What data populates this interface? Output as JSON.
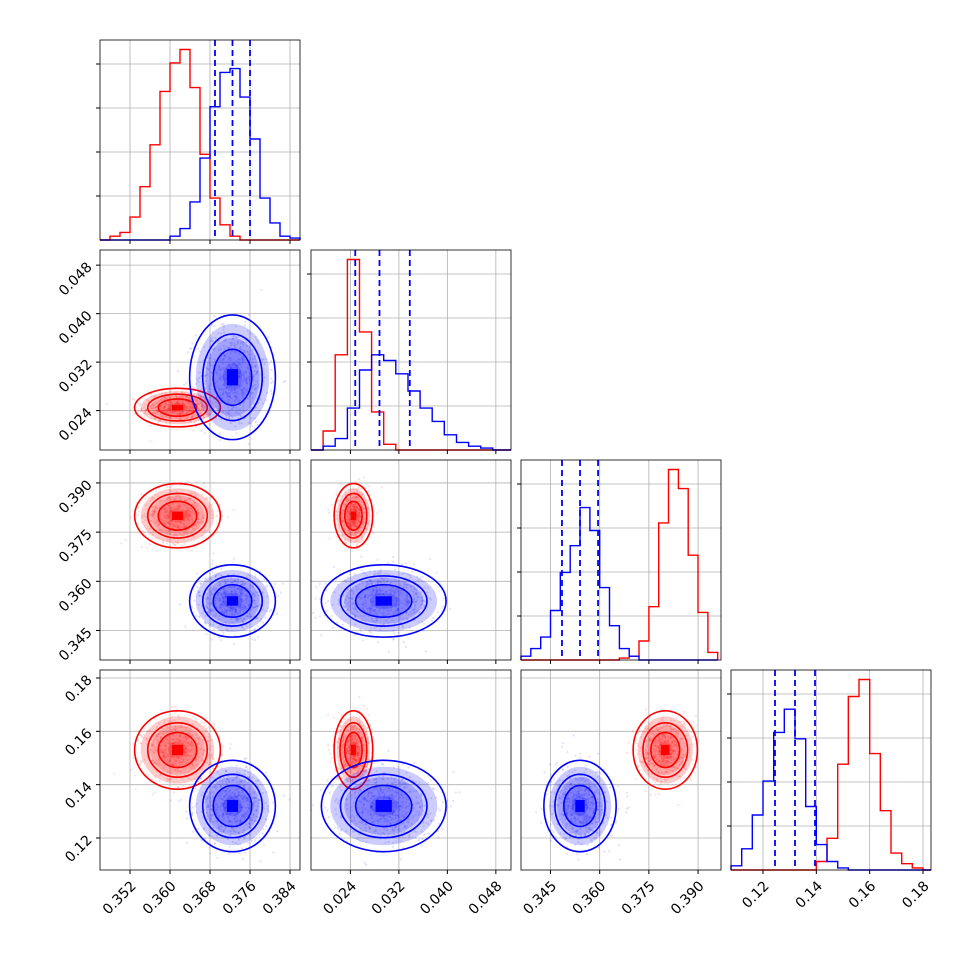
{
  "colors": {
    "series_a": "#ff0000",
    "series_b": "#0000ff",
    "grid": "#b0b0b0",
    "axis": "#000000"
  },
  "chart_data": {
    "type": "corner",
    "grid": true,
    "quantile_lines": "dashed vertical lines on series_b histograms",
    "parameters": [
      {
        "range": [
          0.346,
          0.386
        ],
        "ticks": [
          0.352,
          0.36,
          0.368,
          0.376,
          0.384
        ],
        "tick_labels": [
          "0.352",
          "0.360",
          "0.368",
          "0.376",
          "0.384"
        ]
      },
      {
        "range": [
          0.0175,
          0.0505
        ],
        "ticks": [
          0.024,
          0.032,
          0.04,
          0.048
        ],
        "tick_labels": [
          "0.024",
          "0.032",
          "0.040",
          "0.048"
        ]
      },
      {
        "range": [
          0.336,
          0.397
        ],
        "ticks": [
          0.345,
          0.36,
          0.375,
          0.39
        ],
        "tick_labels": [
          "0.345",
          "0.360",
          "0.375",
          "0.390"
        ]
      },
      {
        "range": [
          0.108,
          0.183
        ],
        "ticks": [
          0.12,
          0.14,
          0.16,
          0.18
        ],
        "tick_labels": [
          "0.12",
          "0.14",
          "0.16",
          "0.18"
        ]
      }
    ],
    "series": [
      {
        "color": "red",
        "mean": [
          0.3615,
          0.0245,
          0.38,
          0.153
        ],
        "sd": [
          0.0035,
          0.0013,
          0.004,
          0.006
        ]
      },
      {
        "color": "blue",
        "mean": [
          0.3725,
          0.0295,
          0.354,
          0.132
        ],
        "sd": [
          0.0035,
          0.0042,
          0.0045,
          0.007
        ]
      }
    ],
    "histograms": [
      {
        "param": 0,
        "edges": [
          0.346,
          0.348,
          0.35,
          0.352,
          0.354,
          0.356,
          0.358,
          0.36,
          0.362,
          0.364,
          0.366,
          0.368,
          0.37,
          0.372,
          0.374,
          0.376,
          0.378,
          0.38,
          0.382,
          0.384,
          0.386
        ],
        "red": [
          0,
          0.02,
          0.04,
          0.12,
          0.28,
          0.5,
          0.78,
          0.93,
          1.0,
          0.8,
          0.45,
          0.22,
          0.08,
          0.02,
          0,
          0,
          0,
          0,
          0,
          0
        ],
        "blue": [
          0,
          0,
          0,
          0,
          0,
          0,
          0,
          0.02,
          0.06,
          0.2,
          0.43,
          0.7,
          0.88,
          0.9,
          0.75,
          0.53,
          0.22,
          0.09,
          0.02,
          0.01
        ],
        "quantiles": [
          0.369,
          0.3725,
          0.376
        ]
      },
      {
        "param": 1,
        "edges": [
          0.0175,
          0.0195,
          0.0215,
          0.0235,
          0.0255,
          0.0275,
          0.0295,
          0.0315,
          0.0335,
          0.0355,
          0.0375,
          0.0395,
          0.0415,
          0.0435,
          0.0455,
          0.0475,
          0.0495,
          0.0505
        ],
        "red": [
          0,
          0.1,
          0.5,
          1.0,
          0.62,
          0.2,
          0.03,
          0,
          0,
          0,
          0,
          0,
          0,
          0,
          0,
          0,
          0
        ],
        "blue": [
          0,
          0.02,
          0.06,
          0.22,
          0.42,
          0.5,
          0.47,
          0.4,
          0.31,
          0.22,
          0.15,
          0.08,
          0.04,
          0.02,
          0.01,
          0,
          0
        ],
        "quantiles": [
          0.0248,
          0.0288,
          0.0338
        ]
      },
      {
        "param": 2,
        "edges": [
          0.336,
          0.339,
          0.342,
          0.345,
          0.348,
          0.351,
          0.354,
          0.357,
          0.36,
          0.363,
          0.366,
          0.369,
          0.372,
          0.375,
          0.378,
          0.381,
          0.384,
          0.387,
          0.39,
          0.393,
          0.396
        ],
        "red": [
          0,
          0,
          0,
          0,
          0,
          0,
          0,
          0,
          0,
          0,
          0.01,
          0.02,
          0.1,
          0.28,
          0.72,
          1.0,
          0.9,
          0.55,
          0.25,
          0.04
        ],
        "blue": [
          0.02,
          0.06,
          0.12,
          0.26,
          0.46,
          0.6,
          0.8,
          0.68,
          0.38,
          0.18,
          0.06,
          0.02,
          0,
          0,
          0,
          0,
          0,
          0,
          0,
          0
        ],
        "quantiles": [
          0.3485,
          0.354,
          0.3595
        ]
      },
      {
        "param": 3,
        "edges": [
          0.108,
          0.112,
          0.116,
          0.12,
          0.124,
          0.128,
          0.132,
          0.136,
          0.14,
          0.144,
          0.148,
          0.152,
          0.156,
          0.16,
          0.164,
          0.168,
          0.172,
          0.176,
          0.18,
          0.183
        ],
        "red": [
          0,
          0,
          0,
          0,
          0,
          0,
          0,
          0,
          0.04,
          0.15,
          0.5,
          0.82,
          0.9,
          0.55,
          0.28,
          0.08,
          0.03,
          0.01,
          0
        ],
        "blue": [
          0.02,
          0.1,
          0.26,
          0.42,
          0.65,
          0.76,
          0.62,
          0.3,
          0.12,
          0.04,
          0.01,
          0,
          0,
          0,
          0,
          0,
          0,
          0,
          0
        ],
        "quantiles": [
          0.1245,
          0.132,
          0.1395
        ]
      }
    ]
  }
}
